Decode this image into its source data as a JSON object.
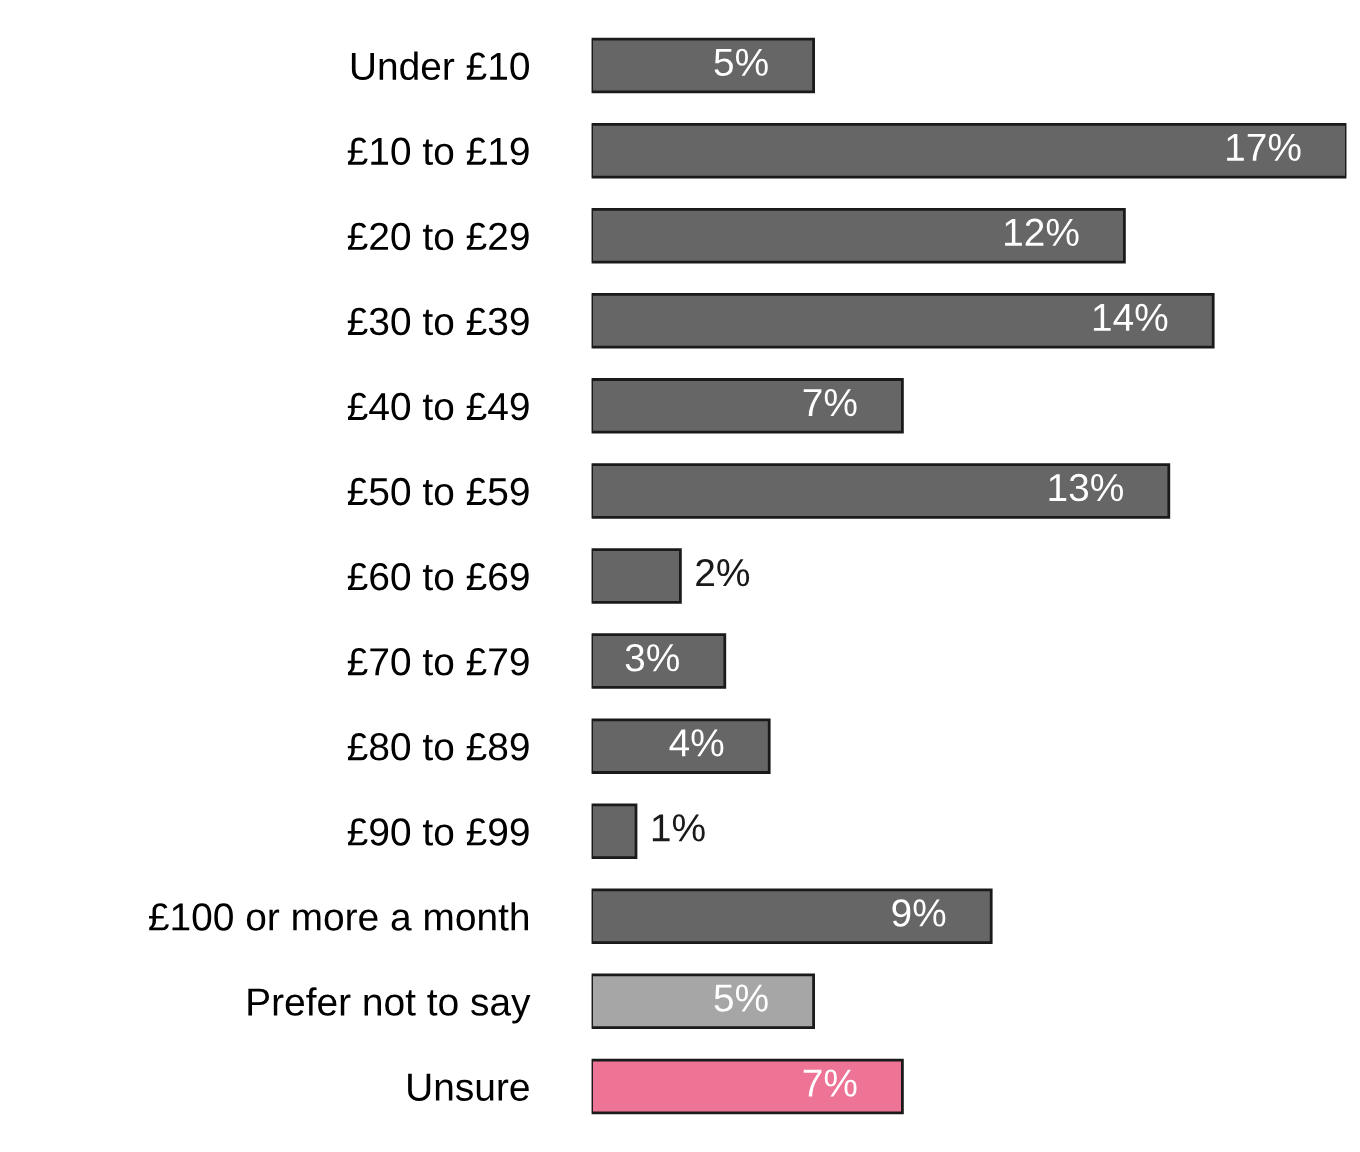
{
  "chart_data": {
    "type": "bar",
    "orientation": "horizontal",
    "categories": [
      "Under £10",
      "£10 to £19",
      "£20 to £29",
      "£30 to £39",
      "£40 to £49",
      "£50 to £59",
      "£60 to £69",
      "£70 to £79",
      "£80 to £89",
      "£90 to £99",
      "£100 or more a month",
      "Prefer not to say",
      "Unsure"
    ],
    "values": [
      5,
      17,
      12,
      14,
      7,
      13,
      2,
      3,
      4,
      1,
      9,
      5,
      7
    ],
    "colors": [
      "#666666",
      "#666666",
      "#666666",
      "#666666",
      "#666666",
      "#666666",
      "#666666",
      "#666666",
      "#666666",
      "#666666",
      "#666666",
      "#a6a6a6",
      "#ee7496"
    ],
    "value_labels": [
      "5%",
      "17%",
      "12%",
      "14%",
      "7%",
      "13%",
      "2%",
      "3%",
      "4%",
      "1%",
      "9%",
      "5%",
      "7%"
    ],
    "grid": false,
    "legend": false
  }
}
